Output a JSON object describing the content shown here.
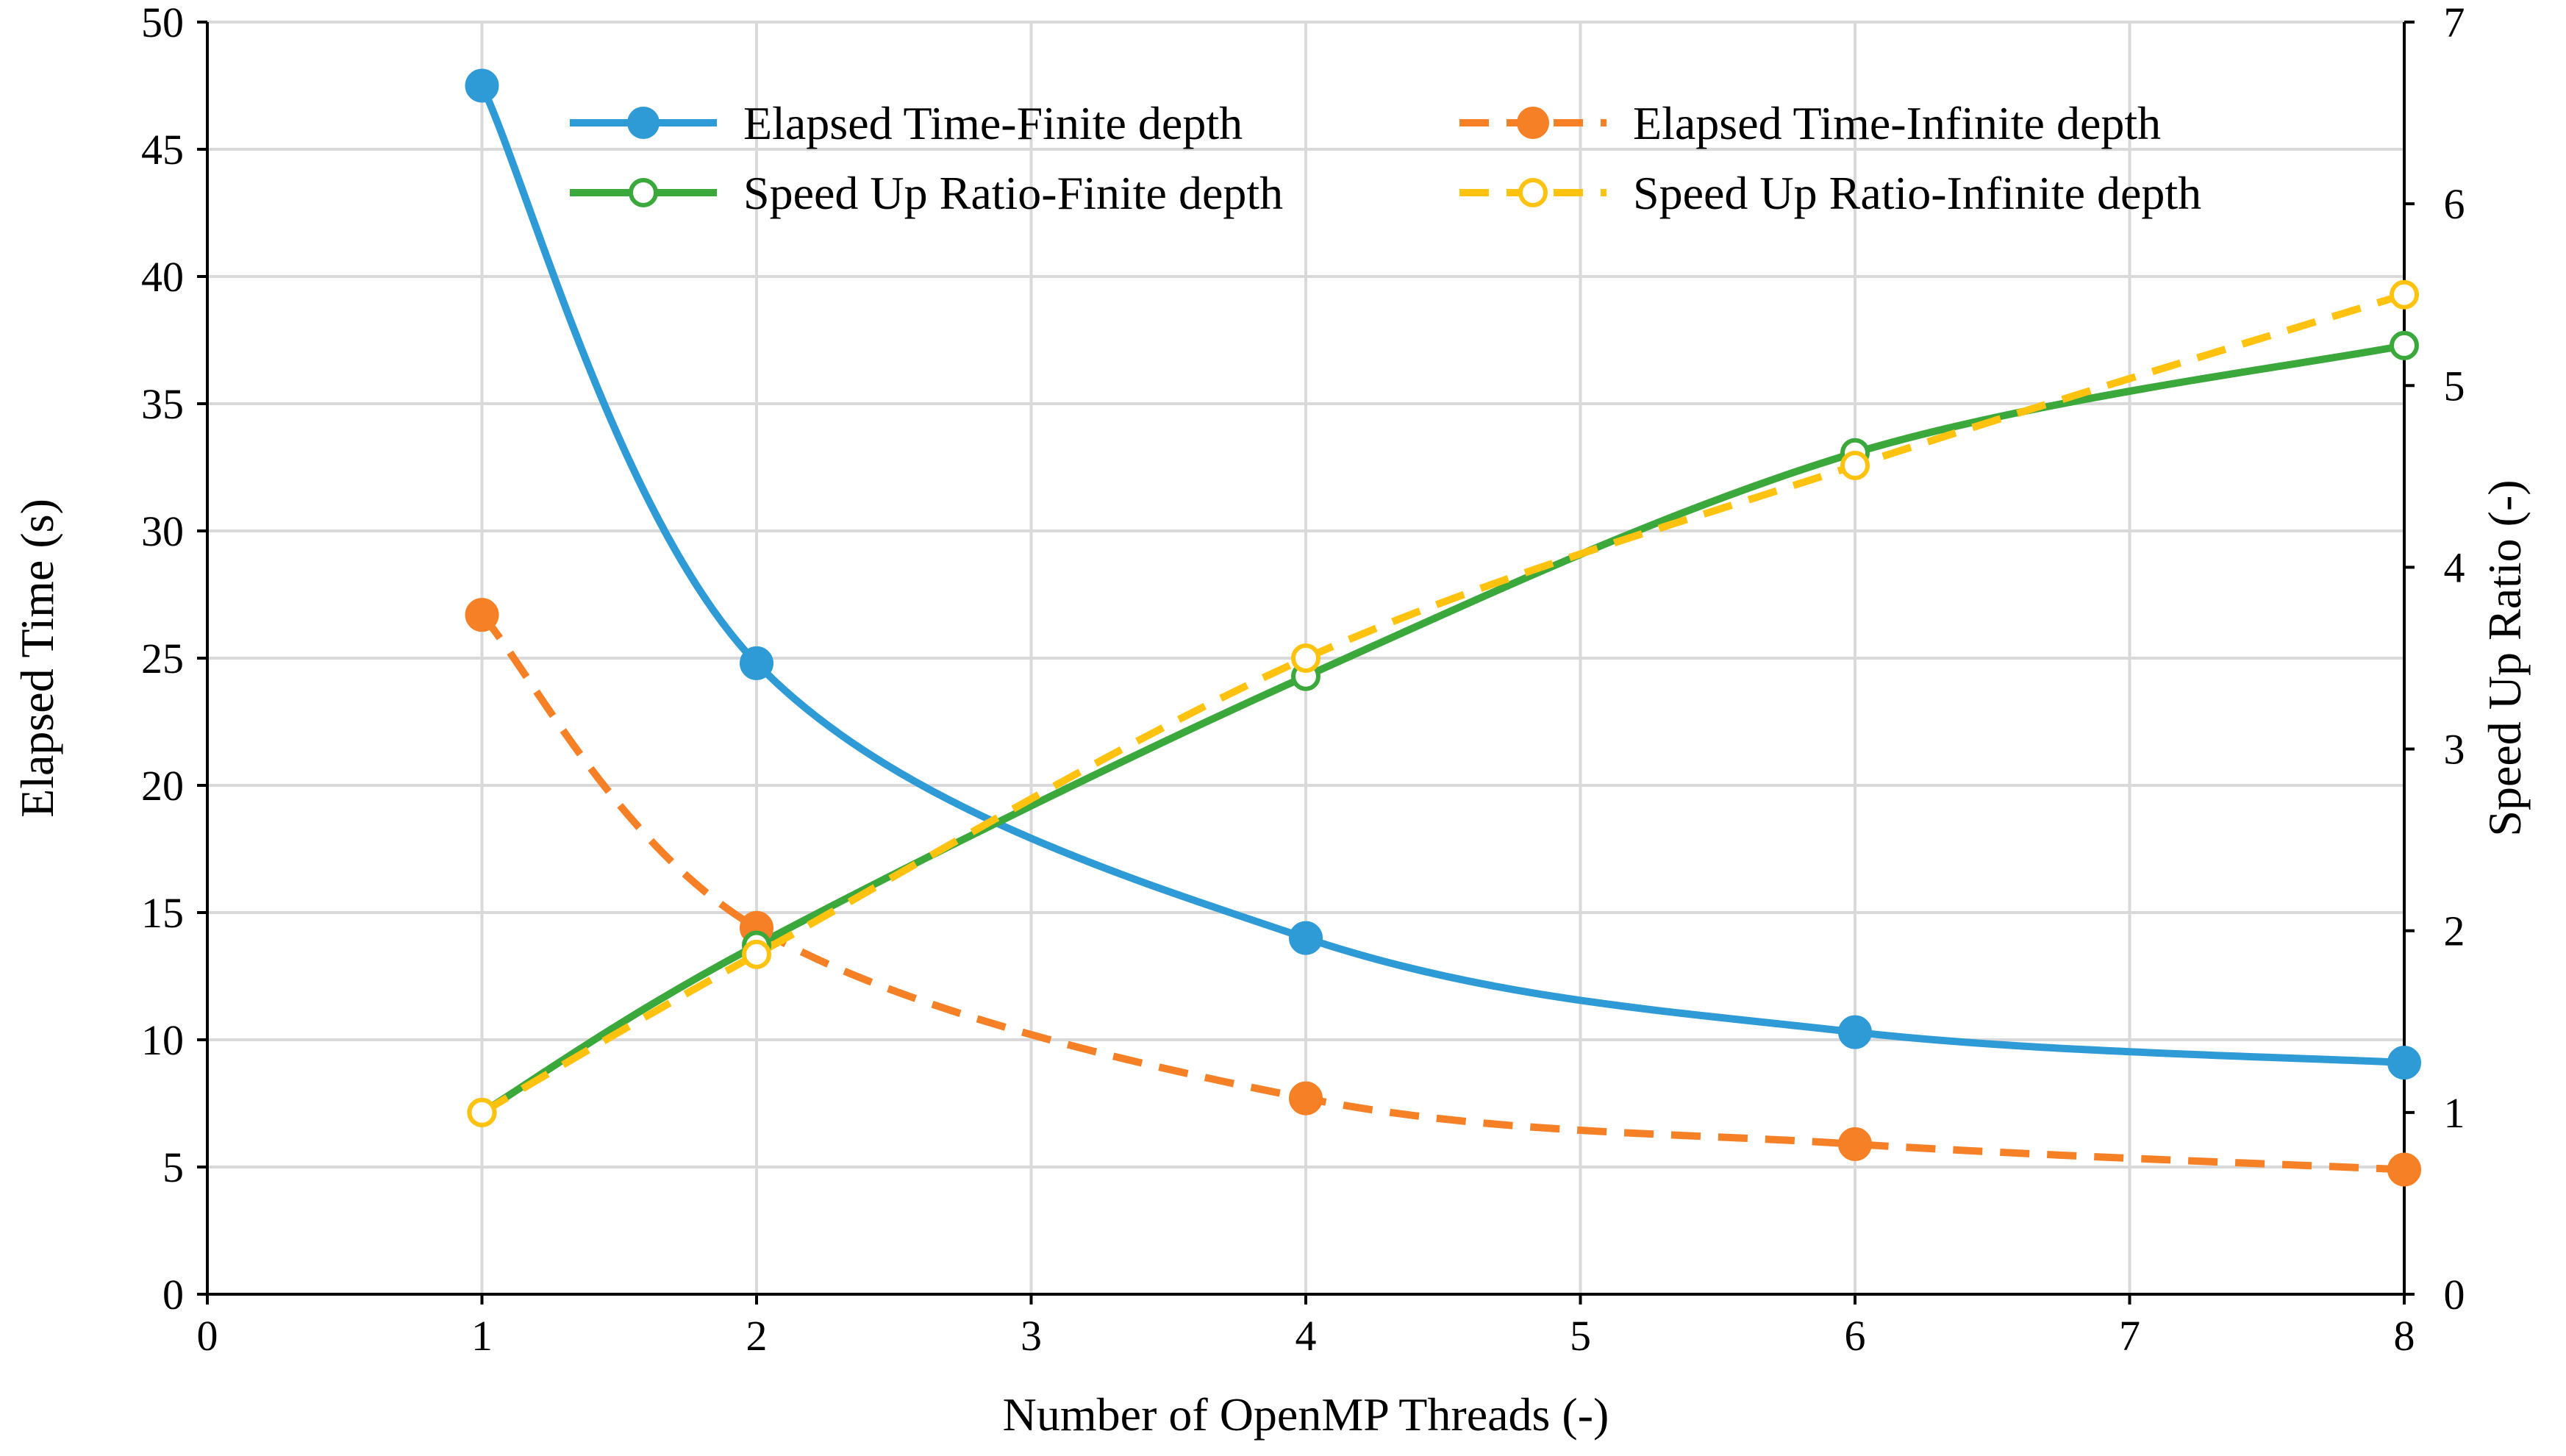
{
  "chart_data": {
    "type": "line",
    "x_axis": {
      "label": "Number of OpenMP Threads (-)",
      "range": [
        0,
        8
      ],
      "tick_labels": [
        "0",
        "1",
        "2",
        "3",
        "4",
        "5",
        "6",
        "7",
        "8"
      ]
    },
    "y_axis_left": {
      "label": "Elapsed Time (s)",
      "range": [
        0,
        50
      ],
      "tick_labels": [
        "0",
        "5",
        "10",
        "15",
        "20",
        "25",
        "30",
        "35",
        "40",
        "45",
        "50"
      ]
    },
    "y_axis_right": {
      "label": "Speed Up Ratio (-)",
      "range": [
        0,
        7
      ],
      "tick_labels": [
        "0",
        "1",
        "2",
        "3",
        "4",
        "5",
        "6",
        "7"
      ]
    },
    "grid": true,
    "legend_position": "top",
    "series": [
      {
        "name": "Elapsed Time-Finite depth",
        "axis": "left",
        "color": "#2e9bd6",
        "line_style": "solid",
        "marker": "filled-circle",
        "x": [
          1,
          2,
          4,
          6,
          8
        ],
        "values": [
          47.5,
          24.8,
          14.0,
          10.3,
          9.1
        ]
      },
      {
        "name": "Elapsed Time-Infinite depth",
        "axis": "left",
        "color": "#f58025",
        "line_style": "dashed",
        "marker": "filled-circle",
        "x": [
          1,
          2,
          4,
          6,
          8
        ],
        "values": [
          26.7,
          14.4,
          7.7,
          5.9,
          4.9
        ]
      },
      {
        "name": "Speed Up Ratio-Finite depth",
        "axis": "right",
        "color": "#3ba83b",
        "line_style": "solid",
        "marker": "open-circle",
        "x": [
          1,
          2,
          4,
          6,
          8
        ],
        "values": [
          1.0,
          1.92,
          3.4,
          4.63,
          5.22
        ]
      },
      {
        "name": "Speed Up Ratio-Infinite depth",
        "axis": "right",
        "color": "#ffc20e",
        "line_style": "dashed",
        "marker": "open-circle",
        "x": [
          1,
          2,
          4,
          6,
          8
        ],
        "values": [
          1.0,
          1.87,
          3.5,
          4.56,
          5.5
        ]
      }
    ]
  }
}
